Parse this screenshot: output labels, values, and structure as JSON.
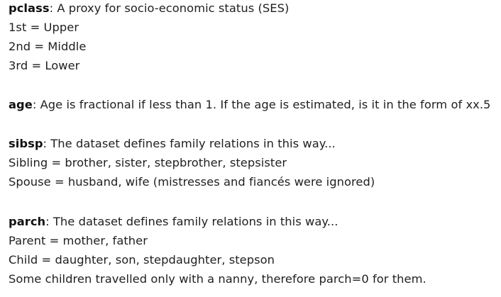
{
  "sections": {
    "pclass": {
      "term": "pclass",
      "definition": ": A proxy for socio-economic status (SES)",
      "lines": [
        "1st = Upper",
        "2nd = Middle",
        "3rd = Lower"
      ]
    },
    "age": {
      "term": "age",
      "definition": ": Age is fractional if less than 1. If the age is estimated, is it in the form of xx.5"
    },
    "sibsp": {
      "term": "sibsp",
      "definition": ": The dataset defines family relations in this way...",
      "lines": [
        "Sibling = brother, sister, stepbrother, stepsister",
        "Spouse = husband, wife (mistresses and fiancés were ignored)"
      ]
    },
    "parch": {
      "term": "parch",
      "definition": ": The dataset defines family relations in this way...",
      "lines": [
        "Parent = mother, father",
        "Child = daughter, son, stepdaughter, stepson",
        "Some children travelled only with a nanny, therefore parch=0 for them."
      ]
    }
  }
}
